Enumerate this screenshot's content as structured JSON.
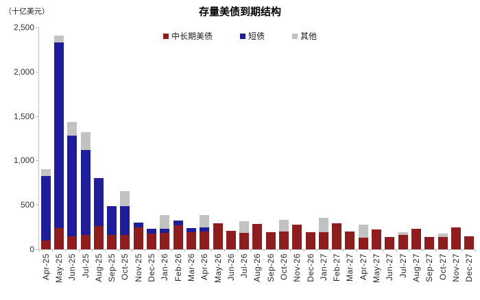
{
  "header": {
    "unit_label": "（十亿美元）",
    "title": "存量美债到期结构"
  },
  "legend": {
    "items": [
      {
        "label": "中长期美债",
        "color": "#8F1D1D"
      },
      {
        "label": "短债",
        "color": "#1E1E9C"
      },
      {
        "label": "其他",
        "color": "#C2C2C2"
      }
    ]
  },
  "chart_data": {
    "type": "bar",
    "stacked": true,
    "title": "存量美债到期结构",
    "unit_label": "（十亿美元）",
    "legend_position": "top",
    "grid": false,
    "ylim": [
      0,
      2500
    ],
    "yticks": [
      {
        "value": 0,
        "label": "0"
      },
      {
        "value": 500,
        "label": "500"
      },
      {
        "value": 1000,
        "label": "1,000"
      },
      {
        "value": 1500,
        "label": "1,500"
      },
      {
        "value": 2000,
        "label": "2,000"
      },
      {
        "value": 2500,
        "label": "2,500"
      }
    ],
    "categories": [
      "Apr-25",
      "May-25",
      "Jun-25",
      "Jul-25",
      "Aug-25",
      "Sep-25",
      "Oct-25",
      "Nov-25",
      "Dec-25",
      "Jan-26",
      "Feb-26",
      "Mar-26",
      "Apr-26",
      "May-26",
      "Jun-26",
      "Jul-26",
      "Aug-26",
      "Sep-26",
      "Oct-26",
      "Nov-26",
      "Dec-26",
      "Jan-27",
      "Feb-27",
      "Mar-27",
      "Apr-27",
      "May-27",
      "Jun-27",
      "Jul-27",
      "Aug-27",
      "Sep-27",
      "Oct-27",
      "Nov-27",
      "Dec-27"
    ],
    "series": [
      {
        "name": "中长期美债",
        "color": "#8F1D1D",
        "values": [
          100,
          240,
          150,
          165,
          260,
          160,
          165,
          250,
          180,
          185,
          270,
          190,
          200,
          290,
          205,
          185,
          285,
          195,
          200,
          275,
          195,
          195,
          290,
          200,
          130,
          225,
          140,
          160,
          235,
          140,
          140,
          250,
          150
        ]
      },
      {
        "name": "短债",
        "color": "#1E1E9C",
        "values": [
          725,
          2090,
          1130,
          955,
          540,
          330,
          325,
          50,
          50,
          45,
          55,
          50,
          45,
          0,
          0,
          0,
          0,
          0,
          0,
          0,
          0,
          0,
          0,
          0,
          0,
          0,
          0,
          0,
          0,
          0,
          0,
          0,
          0
        ]
      },
      {
        "name": "其他",
        "color": "#C2C2C2",
        "values": [
          75,
          80,
          155,
          200,
          0,
          0,
          170,
          0,
          0,
          155,
          0,
          0,
          140,
          0,
          0,
          130,
          0,
          0,
          130,
          0,
          0,
          160,
          0,
          0,
          145,
          0,
          0,
          30,
          0,
          0,
          40,
          0,
          0
        ]
      }
    ]
  }
}
